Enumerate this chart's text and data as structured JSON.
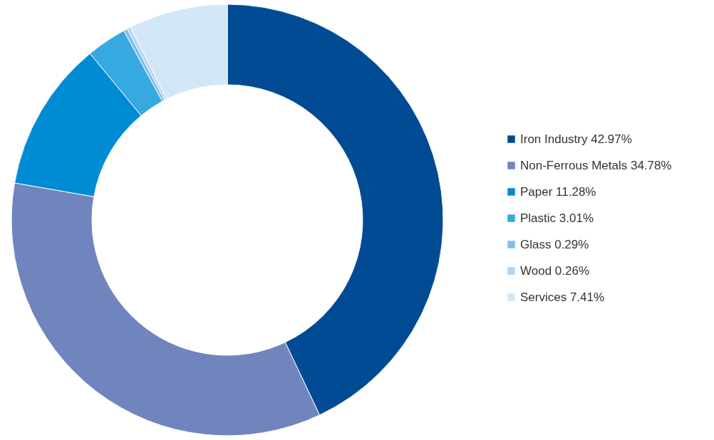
{
  "chart_data": {
    "type": "donut",
    "categories": [
      "Iron Industry",
      "Non-Ferrous Metals",
      "Paper",
      "Plastic",
      "Glass",
      "Wood",
      "Services"
    ],
    "values": [
      42.97,
      34.78,
      11.28,
      3.01,
      0.29,
      0.26,
      7.41
    ],
    "value_labels": [
      "42.97%",
      "34.78%",
      "11.28%",
      "3.01%",
      "0.29%",
      "0.26%",
      "7.41%"
    ],
    "colors": [
      "#004b93",
      "#7085bd",
      "#008bd5",
      "#37a9e1",
      "#7fbfe8",
      "#b0d7f2",
      "#d4e7f7"
    ],
    "legend": "right"
  }
}
